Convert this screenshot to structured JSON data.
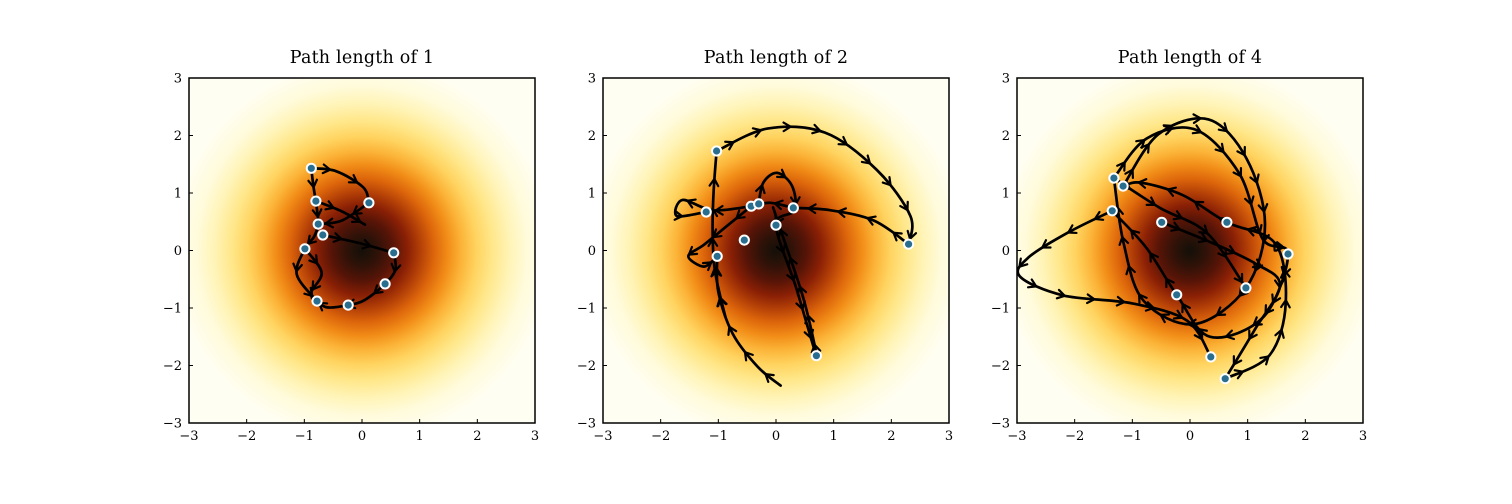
{
  "style": {
    "figure_bg": "#ffffff",
    "plot_bg": "#fffef2",
    "axis_color": "#000000",
    "trajectory_color": "#000000",
    "arrow_color": "#000000",
    "sample_fill": "#2a6e8f",
    "sample_edge": "#ffffff",
    "title_color": "#000000",
    "tick_label_color": "#000000",
    "density_stops": [
      [
        0.0,
        "#131009"
      ],
      [
        0.08,
        "#2e1208"
      ],
      [
        0.16,
        "#551407"
      ],
      [
        0.24,
        "#8a2005"
      ],
      [
        0.31,
        "#b54107"
      ],
      [
        0.38,
        "#dd660b"
      ],
      [
        0.45,
        "#f18c17"
      ],
      [
        0.52,
        "#fbb236"
      ],
      [
        0.6,
        "#ffd35f"
      ],
      [
        0.68,
        "#ffe687"
      ],
      [
        0.77,
        "#fff3b4"
      ],
      [
        0.87,
        "#fffbdb"
      ],
      [
        1.0,
        "#fffef2"
      ]
    ]
  },
  "chart_data": [
    {
      "type": "scatter",
      "title": "Path length of 1",
      "xlabel": "",
      "ylabel": "",
      "xlim": [
        -3,
        3
      ],
      "ylim": [
        -3,
        3
      ],
      "grid": false,
      "legend": null,
      "x_tick_values": [
        -3,
        -2,
        -1,
        0,
        1,
        2,
        3
      ],
      "y_tick_values": [
        -3,
        -2,
        -1,
        0,
        1,
        2,
        3
      ],
      "x_tick_labels": [
        "−3",
        "−2",
        "−1",
        "0",
        "1",
        "2",
        "3"
      ],
      "y_tick_labels": [
        "−3",
        "−2",
        "−1",
        "0",
        "1",
        "2",
        "3"
      ],
      "background_density": "2D Gaussian density heatmap centered at (0,0), dark core fading to ivory",
      "samples": [
        [
          -0.88,
          1.43
        ],
        [
          -0.8,
          0.86
        ],
        [
          0.12,
          0.83
        ],
        [
          -0.76,
          0.46
        ],
        [
          -0.68,
          0.27
        ],
        [
          -0.99,
          0.03
        ],
        [
          0.55,
          -0.04
        ],
        [
          0.4,
          -0.58
        ],
        [
          -0.78,
          -0.88
        ],
        [
          -0.24,
          -0.95
        ]
      ],
      "trajectories": [
        [
          [
            -0.88,
            1.43
          ],
          [
            -0.45,
            1.38
          ],
          [
            0.02,
            1.1
          ],
          [
            0.12,
            0.83
          ]
        ],
        [
          [
            0.12,
            0.83
          ],
          [
            -0.35,
            0.52
          ],
          [
            -0.76,
            0.46
          ]
        ],
        [
          [
            -0.8,
            0.86
          ],
          [
            -0.35,
            0.68
          ],
          [
            0.05,
            0.45
          ]
        ],
        [
          [
            -0.88,
            1.43
          ],
          [
            -0.84,
            1.1
          ],
          [
            -0.8,
            0.86
          ],
          [
            -0.77,
            0.62
          ],
          [
            -0.76,
            0.46
          ],
          [
            -0.83,
            0.24
          ],
          [
            -0.99,
            0.03
          ],
          [
            -1.13,
            -0.42
          ],
          [
            -0.78,
            -0.88
          ]
        ],
        [
          [
            -0.99,
            0.03
          ],
          [
            -0.7,
            -0.38
          ],
          [
            -0.88,
            -0.73
          ],
          [
            -0.8,
            -0.95
          ]
        ],
        [
          [
            -0.68,
            0.27
          ],
          [
            -0.05,
            0.13
          ],
          [
            0.55,
            -0.04
          ]
        ],
        [
          [
            0.55,
            -0.04
          ],
          [
            0.58,
            -0.33
          ],
          [
            0.4,
            -0.58
          ],
          [
            0.05,
            -0.86
          ],
          [
            -0.24,
            -0.95
          ],
          [
            -0.6,
            -0.99
          ],
          [
            -0.78,
            -0.88
          ]
        ]
      ]
    },
    {
      "type": "scatter",
      "title": "Path length of 2",
      "xlabel": "",
      "ylabel": "",
      "xlim": [
        -3,
        3
      ],
      "ylim": [
        -3,
        3
      ],
      "grid": false,
      "legend": null,
      "x_tick_values": [
        -3,
        -2,
        -1,
        0,
        1,
        2,
        3
      ],
      "y_tick_values": [
        -3,
        -2,
        -1,
        0,
        1,
        2,
        3
      ],
      "x_tick_labels": [
        "−3",
        "−2",
        "−1",
        "0",
        "1",
        "2",
        "3"
      ],
      "y_tick_labels": [
        "−3",
        "−2",
        "−1",
        "0",
        "1",
        "2",
        "3"
      ],
      "background_density": "2D Gaussian density heatmap centered at (0,0), dark core fading to ivory",
      "samples": [
        [
          -1.03,
          1.73
        ],
        [
          -1.21,
          0.67
        ],
        [
          -0.43,
          0.77
        ],
        [
          -0.3,
          0.81
        ],
        [
          0.3,
          0.74
        ],
        [
          0.0,
          0.44
        ],
        [
          -0.55,
          0.18
        ],
        [
          -1.02,
          -0.1
        ],
        [
          2.3,
          0.11
        ],
        [
          0.7,
          -1.83
        ]
      ],
      "trajectories": [
        [
          [
            -1.03,
            1.73
          ],
          [
            -0.15,
            2.12
          ],
          [
            0.85,
            2.05
          ],
          [
            1.75,
            1.4
          ],
          [
            2.33,
            0.6
          ],
          [
            2.3,
            0.11
          ]
        ],
        [
          [
            2.3,
            0.11
          ],
          [
            1.7,
            0.52
          ],
          [
            0.95,
            0.7
          ],
          [
            0.3,
            0.74
          ]
        ],
        [
          [
            0.3,
            0.74
          ],
          [
            -0.1,
            0.83
          ],
          [
            -0.43,
            0.77
          ],
          [
            -1.1,
            0.7
          ],
          [
            -1.62,
            0.88
          ],
          [
            -1.72,
            0.6
          ],
          [
            -1.21,
            0.67
          ]
        ],
        [
          [
            -0.43,
            0.77
          ],
          [
            -0.82,
            0.45
          ],
          [
            -1.25,
            0.1
          ],
          [
            -1.52,
            -0.1
          ],
          [
            -1.25,
            -0.28
          ],
          [
            -1.02,
            -0.1
          ]
        ],
        [
          [
            -0.88,
            -1.15
          ],
          [
            -1.06,
            -0.35
          ],
          [
            -1.1,
            0.35
          ],
          [
            -1.08,
            1.05
          ],
          [
            -1.03,
            1.73
          ]
        ],
        [
          [
            -0.3,
            0.81
          ],
          [
            -0.22,
            1.18
          ],
          [
            0.02,
            1.35
          ],
          [
            0.28,
            1.12
          ],
          [
            0.32,
            0.7
          ],
          [
            0.0,
            0.44
          ],
          [
            0.35,
            -0.65
          ],
          [
            0.7,
            -1.83
          ],
          [
            0.48,
            -0.85
          ],
          [
            0.1,
            0.3
          ],
          [
            -0.05,
            0.75
          ]
        ],
        [
          [
            0.08,
            -2.35
          ],
          [
            -0.32,
            -2.02
          ],
          [
            -0.75,
            -1.45
          ],
          [
            -1.0,
            -0.72
          ],
          [
            -1.02,
            -0.1
          ]
        ]
      ]
    },
    {
      "type": "scatter",
      "title": "Path length of 4",
      "xlabel": "",
      "ylabel": "",
      "xlim": [
        -3,
        3
      ],
      "ylim": [
        -3,
        3
      ],
      "grid": false,
      "legend": null,
      "x_tick_values": [
        -3,
        -2,
        -1,
        0,
        1,
        2,
        3
      ],
      "y_tick_values": [
        -3,
        -2,
        -1,
        0,
        1,
        2,
        3
      ],
      "x_tick_labels": [
        "−3",
        "−2",
        "−1",
        "0",
        "1",
        "2",
        "3"
      ],
      "y_tick_labels": [
        "−3",
        "−2",
        "−1",
        "0",
        "1",
        "2",
        "3"
      ],
      "background_density": "2D Gaussian density heatmap centered at (0,0), dark core fading to ivory",
      "samples": [
        [
          -1.32,
          1.26
        ],
        [
          -1.16,
          1.12
        ],
        [
          -1.35,
          0.69
        ],
        [
          -0.49,
          0.49
        ],
        [
          0.64,
          0.49
        ],
        [
          1.7,
          -0.06
        ],
        [
          0.97,
          -0.65
        ],
        [
          -0.23,
          -0.77
        ],
        [
          0.36,
          -1.85
        ],
        [
          0.61,
          -2.23
        ]
      ],
      "trajectories": [
        [
          [
            -1.16,
            1.12
          ],
          [
            -0.55,
            2.02
          ],
          [
            0.32,
            2.28
          ],
          [
            0.98,
            1.6
          ],
          [
            1.3,
            0.45
          ],
          [
            0.97,
            -0.65
          ],
          [
            0.08,
            -1.28
          ],
          [
            -0.8,
            -0.88
          ],
          [
            -1.15,
            0.12
          ],
          [
            -1.32,
            1.26
          ]
        ],
        [
          [
            -1.32,
            1.26
          ],
          [
            -0.75,
            1.95
          ],
          [
            0.1,
            2.1
          ],
          [
            0.86,
            1.33
          ],
          [
            1.26,
            0.2
          ],
          [
            1.7,
            -0.06
          ],
          [
            1.28,
            -1.15
          ],
          [
            0.35,
            -1.5
          ],
          [
            -0.23,
            -0.77
          ],
          [
            -0.76,
            0.05
          ],
          [
            -1.35,
            0.69
          ]
        ],
        [
          [
            -1.35,
            0.69
          ],
          [
            -2.1,
            0.32
          ],
          [
            -2.8,
            -0.12
          ],
          [
            -2.95,
            -0.45
          ],
          [
            -2.2,
            -0.78
          ],
          [
            -1.0,
            -0.92
          ],
          [
            -0.05,
            -1.22
          ],
          [
            0.36,
            -1.85
          ]
        ],
        [
          [
            0.61,
            -2.23
          ],
          [
            1.38,
            -1.82
          ],
          [
            1.66,
            -0.92
          ],
          [
            1.48,
            0.12
          ],
          [
            0.64,
            0.49
          ],
          [
            -0.12,
            0.96
          ],
          [
            -0.85,
            1.18
          ],
          [
            -1.16,
            1.12
          ]
        ],
        [
          [
            -0.49,
            0.49
          ],
          [
            0.32,
            0.16
          ],
          [
            1.12,
            -0.22
          ],
          [
            1.56,
            -0.6
          ],
          [
            1.12,
            -1.38
          ],
          [
            0.61,
            -2.23
          ]
        ],
        [
          [
            -1.32,
            1.26
          ],
          [
            -0.52,
            0.74
          ],
          [
            0.3,
            0.3
          ],
          [
            0.97,
            -0.65
          ]
        ]
      ]
    }
  ]
}
